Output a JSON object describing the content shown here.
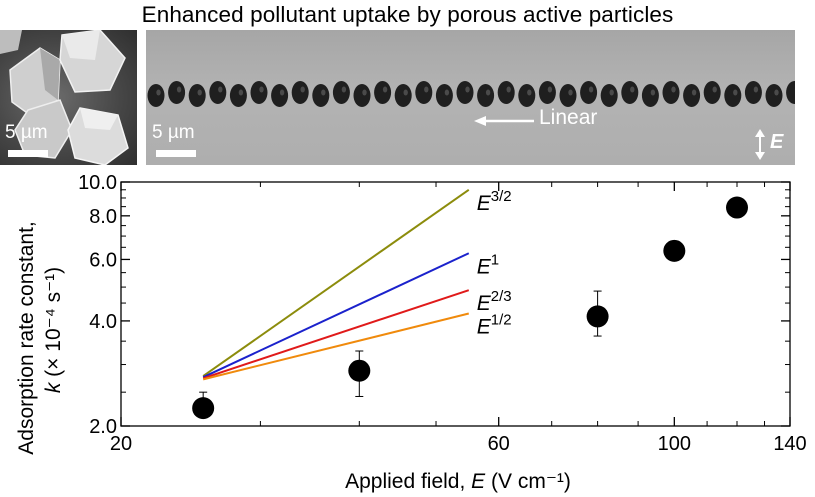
{
  "figure": {
    "title": "Enhanced pollutant uptake by porous active particles",
    "sem_panel": {
      "scale_label": "5 µm"
    },
    "optical_panel": {
      "scale_label": "5 µm",
      "arrow_label": "Linear",
      "field_label": "E"
    }
  },
  "chart_data": {
    "type": "scatter",
    "xlabel": "Applied field, E (V cm⁻¹)",
    "ylabel_line1": "Adsorption rate constant,",
    "ylabel_line2": "k (× 10⁻⁴ s⁻¹)",
    "xscale": "log",
    "yscale": "log",
    "xlim": [
      20,
      140
    ],
    "ylim": [
      2.0,
      10.0
    ],
    "xticks": [
      20,
      60,
      100,
      140
    ],
    "xtick_labels": [
      "20",
      "60",
      "100",
      "140"
    ],
    "yticks": [
      2.0,
      4.0,
      6.0,
      8.0,
      10.0
    ],
    "ytick_labels": [
      "2.0",
      "4.0",
      "6.0",
      "8.0",
      "10.0"
    ],
    "points": [
      {
        "x": 25.4,
        "y": 2.25,
        "yerr_low": 0.0,
        "yerr_high": 0.25
      },
      {
        "x": 40.0,
        "y": 2.88,
        "yerr_low": 0.45,
        "yerr_high": 0.4
      },
      {
        "x": 80.0,
        "y": 4.12,
        "yerr_low": 0.5,
        "yerr_high": 0.75
      },
      {
        "x": 100.0,
        "y": 6.35,
        "yerr_low": 0.0,
        "yerr_high": 0.0
      },
      {
        "x": 120.0,
        "y": 8.45,
        "yerr_low": 0.0,
        "yerr_high": 0.0
      }
    ],
    "reference_lines": [
      {
        "label": "E3/2",
        "label_base": "E",
        "label_exp": "3/2",
        "color": "#8c8c0c",
        "x0": 25.4,
        "y0": 2.78,
        "x1": 55.0,
        "y1": 9.5
      },
      {
        "label": "E1",
        "label_base": "E",
        "label_exp": "1",
        "color": "#1b22cc",
        "x0": 25.4,
        "y0": 2.76,
        "x1": 55.0,
        "y1": 6.25
      },
      {
        "label": "E2/3",
        "label_base": "E",
        "label_exp": "2/3",
        "color": "#e01a1a",
        "x0": 25.4,
        "y0": 2.74,
        "x1": 55.0,
        "y1": 4.9
      },
      {
        "label": "E1/2",
        "label_base": "E",
        "label_exp": "1/2",
        "color": "#f08a0c",
        "x0": 25.4,
        "y0": 2.72,
        "x1": 55.0,
        "y1": 4.2
      }
    ]
  }
}
